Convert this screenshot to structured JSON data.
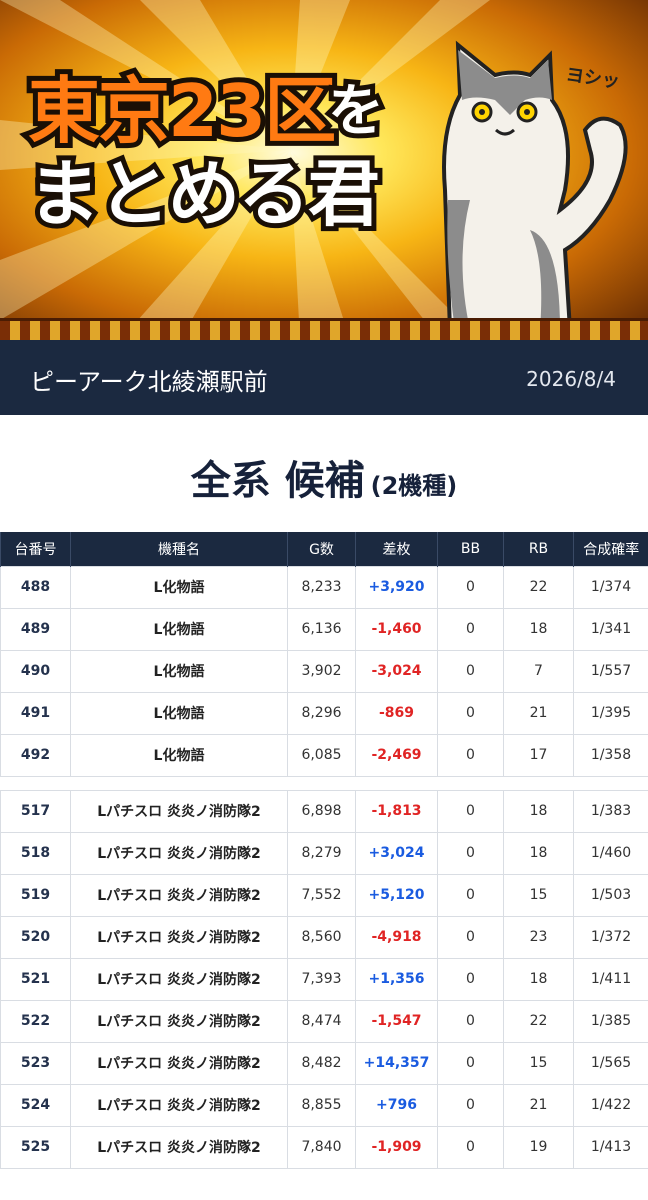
{
  "banner": {
    "title_part1": "東京23区",
    "title_part2": "を",
    "title_line2": "まとめる君",
    "speech": "ヨシッ"
  },
  "header": {
    "store": "ピーアーク北綾瀬駅前",
    "date": "2026/8/4"
  },
  "section": {
    "title": "全系 候補",
    "count": "(2機種)"
  },
  "table": {
    "columns": [
      "台番号",
      "機種名",
      "G数",
      "差枚",
      "BB",
      "RB",
      "合成確率"
    ],
    "groups": [
      [
        [
          "488",
          "L化物語",
          "8,233",
          "+3,920",
          "0",
          "22",
          "1/374"
        ],
        [
          "489",
          "L化物語",
          "6,136",
          "-1,460",
          "0",
          "18",
          "1/341"
        ],
        [
          "490",
          "L化物語",
          "3,902",
          "-3,024",
          "0",
          "7",
          "1/557"
        ],
        [
          "491",
          "L化物語",
          "8,296",
          "-869",
          "0",
          "21",
          "1/395"
        ],
        [
          "492",
          "L化物語",
          "6,085",
          "-2,469",
          "0",
          "17",
          "1/358"
        ]
      ],
      [
        [
          "517",
          "Lパチスロ 炎炎ノ消防隊2",
          "6,898",
          "-1,813",
          "0",
          "18",
          "1/383"
        ],
        [
          "518",
          "Lパチスロ 炎炎ノ消防隊2",
          "8,279",
          "+3,024",
          "0",
          "18",
          "1/460"
        ],
        [
          "519",
          "Lパチスロ 炎炎ノ消防隊2",
          "7,552",
          "+5,120",
          "0",
          "15",
          "1/503"
        ],
        [
          "520",
          "Lパチスロ 炎炎ノ消防隊2",
          "8,560",
          "-4,918",
          "0",
          "23",
          "1/372"
        ],
        [
          "521",
          "Lパチスロ 炎炎ノ消防隊2",
          "7,393",
          "+1,356",
          "0",
          "18",
          "1/411"
        ],
        [
          "522",
          "Lパチスロ 炎炎ノ消防隊2",
          "8,474",
          "-1,547",
          "0",
          "22",
          "1/385"
        ],
        [
          "523",
          "Lパチスロ 炎炎ノ消防隊2",
          "8,482",
          "+14,357",
          "0",
          "15",
          "1/565"
        ],
        [
          "524",
          "Lパチスロ 炎炎ノ消防隊2",
          "8,855",
          "+796",
          "0",
          "21",
          "1/422"
        ],
        [
          "525",
          "Lパチスロ 炎炎ノ消防隊2",
          "7,840",
          "-1,909",
          "0",
          "19",
          "1/413"
        ]
      ]
    ]
  }
}
